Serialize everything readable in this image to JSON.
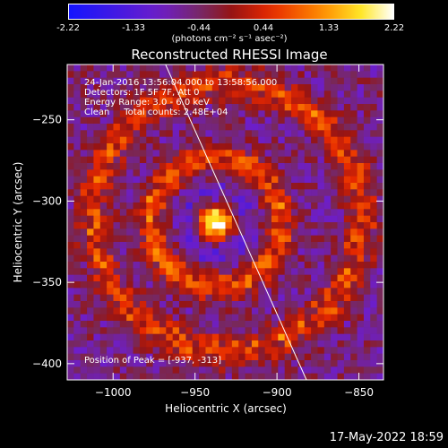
{
  "colorbar": {
    "ticks": [
      "-2.22",
      "-1.33",
      "-0.44",
      "0.44",
      "1.33",
      "2.22"
    ],
    "units": "(photons cm⁻² s⁻¹ asec⁻²)"
  },
  "chart_data": {
    "type": "heatmap",
    "title": "Reconstructed RHESSI Image",
    "xlabel": "Heliocentric X (arcsec)",
    "ylabel": "Heliocentric Y (arcsec)",
    "xlim": [
      -1028,
      -835
    ],
    "ylim": [
      -410,
      -216
    ],
    "x_ticks": [
      "−1000",
      "−950",
      "−900",
      "−850"
    ],
    "x_tick_values": [
      -1000,
      -950,
      -900,
      -850
    ],
    "y_ticks": [
      "−250",
      "−300",
      "−350",
      "−400"
    ],
    "y_tick_values": [
      -250,
      -300,
      -350,
      -400
    ],
    "value_range": [
      -2.22,
      2.22
    ],
    "grid": false,
    "features": [
      {
        "name": "peak",
        "x": -937,
        "y": -313,
        "value": 2.22
      },
      {
        "name": "inner ring",
        "center_x": -937,
        "center_y": -313,
        "radius_arcsec": 40
      },
      {
        "name": "outer ring",
        "center_x": -930,
        "center_y": -310,
        "radius_arcsec": 82
      }
    ],
    "limb_line": [
      [
        -968,
        -216
      ],
      [
        -882,
        -410
      ]
    ]
  },
  "annotations": {
    "time": "24-Jan-2016 13:56:04.000 to 13:58:56.000",
    "detectors": "Detectors: 1F 5F 7F, Att 0",
    "energy": "Energy Range: 3.0 - 6.0 keV",
    "clean": "Clean     Total counts: 2.48E+04",
    "peak": "Position of Peak = [-937, -313]"
  },
  "footer": {
    "date": "17-May-2022 18:59"
  }
}
